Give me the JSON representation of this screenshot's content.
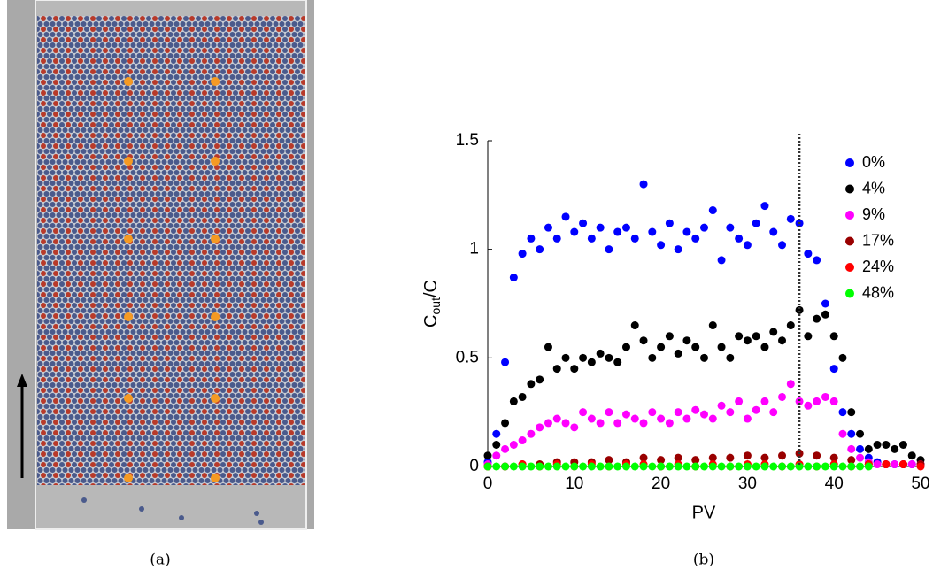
{
  "panel_a": {
    "caption": "(a)"
  },
  "chart_data": {
    "type": "scatter",
    "caption": "(b)",
    "xlabel": "PV",
    "ylabel": [
      "C",
      "out",
      "/C"
    ],
    "xlim": [
      0,
      50
    ],
    "ylim": [
      0,
      1.5
    ],
    "xticks": [
      0,
      10,
      20,
      30,
      40,
      50
    ],
    "yticks": [
      0,
      0.5,
      1,
      1.5
    ],
    "vline": 36,
    "legend": "upper right",
    "series": [
      {
        "name": "0%",
        "color": "#0000ff",
        "x": [
          0,
          1,
          2,
          3,
          4,
          5,
          6,
          7,
          8,
          9,
          10,
          11,
          12,
          13,
          14,
          15,
          16,
          17,
          18,
          19,
          20,
          21,
          22,
          23,
          24,
          25,
          26,
          27,
          28,
          29,
          30,
          31,
          32,
          33,
          34,
          35,
          36,
          37,
          38,
          39,
          40,
          41,
          42,
          43,
          44,
          45,
          46,
          47,
          48,
          49,
          50
        ],
        "values": [
          0.02,
          0.15,
          0.48,
          0.87,
          0.98,
          1.05,
          1.0,
          1.1,
          1.05,
          1.15,
          1.08,
          1.12,
          1.05,
          1.1,
          1.0,
          1.08,
          1.1,
          1.05,
          1.3,
          1.08,
          1.02,
          1.12,
          1.0,
          1.08,
          1.05,
          1.1,
          1.18,
          0.95,
          1.1,
          1.05,
          1.02,
          1.12,
          1.2,
          1.08,
          1.02,
          1.14,
          1.12,
          0.98,
          0.95,
          0.75,
          0.45,
          0.25,
          0.15,
          0.08,
          0.04,
          0.02,
          0.01,
          0.01,
          0.01,
          0.01,
          0.01
        ]
      },
      {
        "name": "4%",
        "color": "#000000",
        "x": [
          0,
          1,
          2,
          3,
          4,
          5,
          6,
          7,
          8,
          9,
          10,
          11,
          12,
          13,
          14,
          15,
          16,
          17,
          18,
          19,
          20,
          21,
          22,
          23,
          24,
          25,
          26,
          27,
          28,
          29,
          30,
          31,
          32,
          33,
          34,
          35,
          36,
          37,
          38,
          39,
          40,
          41,
          42,
          43,
          44,
          45,
          46,
          47,
          48,
          49,
          50
        ],
        "values": [
          0.05,
          0.1,
          0.2,
          0.3,
          0.32,
          0.38,
          0.4,
          0.55,
          0.45,
          0.5,
          0.45,
          0.5,
          0.48,
          0.52,
          0.5,
          0.48,
          0.55,
          0.65,
          0.58,
          0.5,
          0.55,
          0.6,
          0.52,
          0.58,
          0.55,
          0.5,
          0.65,
          0.55,
          0.5,
          0.6,
          0.58,
          0.6,
          0.55,
          0.62,
          0.58,
          0.65,
          0.72,
          0.6,
          0.68,
          0.7,
          0.6,
          0.5,
          0.25,
          0.15,
          0.08,
          0.1,
          0.1,
          0.08,
          0.1,
          0.05,
          0.03
        ]
      },
      {
        "name": "9%",
        "color": "#ff00ff",
        "x": [
          0,
          1,
          2,
          3,
          4,
          5,
          6,
          7,
          8,
          9,
          10,
          11,
          12,
          13,
          14,
          15,
          16,
          17,
          18,
          19,
          20,
          21,
          22,
          23,
          24,
          25,
          26,
          27,
          28,
          29,
          30,
          31,
          32,
          33,
          34,
          35,
          36,
          37,
          38,
          39,
          40,
          41,
          42,
          43,
          44,
          45,
          46,
          47,
          48,
          49,
          50
        ],
        "values": [
          0.01,
          0.05,
          0.08,
          0.1,
          0.12,
          0.15,
          0.18,
          0.2,
          0.22,
          0.2,
          0.18,
          0.25,
          0.22,
          0.2,
          0.25,
          0.2,
          0.24,
          0.22,
          0.2,
          0.25,
          0.22,
          0.2,
          0.25,
          0.22,
          0.26,
          0.24,
          0.22,
          0.28,
          0.25,
          0.3,
          0.22,
          0.26,
          0.3,
          0.25,
          0.32,
          0.38,
          0.3,
          0.28,
          0.3,
          0.32,
          0.3,
          0.15,
          0.08,
          0.04,
          0.02,
          0.01,
          0.01,
          0.01,
          0.01,
          0.01,
          0.01
        ]
      },
      {
        "name": "17%",
        "color": "#990000",
        "x": [
          0,
          2,
          4,
          6,
          8,
          10,
          12,
          14,
          16,
          18,
          20,
          22,
          24,
          26,
          28,
          30,
          32,
          34,
          36,
          38,
          40,
          42,
          44,
          46,
          48,
          50
        ],
        "values": [
          0,
          0,
          0.01,
          0.01,
          0.02,
          0.02,
          0.02,
          0.03,
          0.02,
          0.04,
          0.03,
          0.04,
          0.03,
          0.04,
          0.04,
          0.05,
          0.04,
          0.05,
          0.06,
          0.05,
          0.04,
          0.03,
          0.01,
          0.01,
          0.01,
          0.01
        ]
      },
      {
        "name": "24%",
        "color": "#ff0000",
        "x": [
          0,
          2,
          4,
          6,
          8,
          10,
          12,
          14,
          16,
          18,
          20,
          22,
          24,
          26,
          28,
          30,
          32,
          34,
          36,
          38,
          40,
          42,
          44,
          46,
          48,
          50
        ],
        "values": [
          0,
          0,
          0.01,
          0,
          0.01,
          0,
          0.01,
          0,
          0.01,
          0.01,
          0,
          0.01,
          0,
          0.01,
          0,
          0.01,
          0.01,
          0,
          0.01,
          0,
          0.01,
          0,
          0.01,
          0.01,
          0.01,
          0
        ]
      },
      {
        "name": "48%",
        "color": "#00ff00",
        "x": [
          0,
          1,
          2,
          3,
          4,
          5,
          6,
          7,
          8,
          9,
          10,
          11,
          12,
          13,
          14,
          15,
          16,
          17,
          18,
          19,
          20,
          21,
          22,
          23,
          24,
          25,
          26,
          27,
          28,
          29,
          30,
          31,
          32,
          33,
          34,
          35,
          36,
          37,
          38,
          39,
          40,
          41,
          42,
          43,
          44
        ],
        "values": [
          0,
          0,
          0,
          0,
          0,
          0,
          0,
          0,
          0,
          0,
          0,
          0,
          0,
          0,
          0,
          0,
          0,
          0,
          0,
          0,
          0,
          0,
          0,
          0,
          0,
          0,
          0,
          0,
          0,
          0,
          0,
          0,
          0,
          0,
          0,
          0,
          0,
          0,
          0,
          0,
          0,
          0,
          0,
          0,
          0
        ]
      }
    ]
  }
}
